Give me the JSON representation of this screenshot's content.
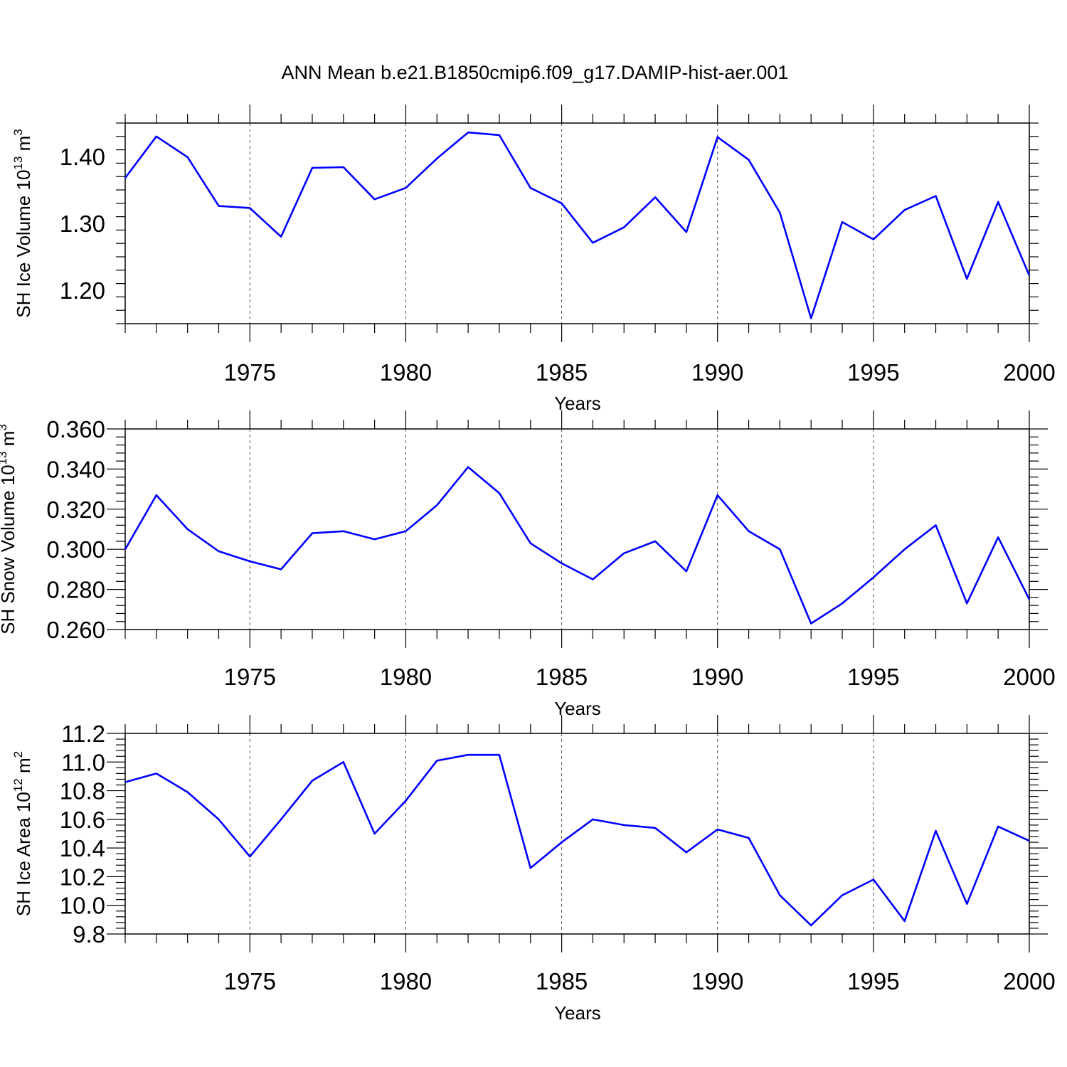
{
  "title": "ANN Mean b.e21.B1850cmip6.f09_g17.DAMIP-hist-aer.001",
  "colors": {
    "line": "#0000ff",
    "axis": "#000000"
  },
  "chart_data": [
    {
      "type": "line",
      "ylabel": "SH Ice Volume 10",
      "ylabel_exp": "13",
      "ylabel_unit": " m",
      "ylabel_unit_exp": "3",
      "xlabel": "Years",
      "xlim": [
        1971,
        2000
      ],
      "ylim": [
        1.15,
        1.45
      ],
      "xticks": [
        1975,
        1980,
        1985,
        1990,
        1995,
        2000
      ],
      "xtick_labels": [
        "1975",
        "1980",
        "1985",
        "1990",
        "1995",
        "2000"
      ],
      "yticks": [
        1.2,
        1.3,
        1.4
      ],
      "ytick_labels": [
        "1.20",
        "1.30",
        "1.40"
      ],
      "grid": "dashed vertical at major x ticks",
      "x": [
        1971,
        1972,
        1973,
        1974,
        1975,
        1976,
        1977,
        1978,
        1979,
        1980,
        1981,
        1982,
        1983,
        1984,
        1985,
        1986,
        1987,
        1988,
        1989,
        1990,
        1991,
        1992,
        1993,
        1994,
        1995,
        1996,
        1997,
        1998,
        1999,
        2000
      ],
      "values": [
        1.368,
        1.43,
        1.399,
        1.326,
        1.323,
        1.28,
        1.383,
        1.384,
        1.336,
        1.353,
        1.397,
        1.436,
        1.432,
        1.353,
        1.33,
        1.271,
        1.294,
        1.339,
        1.287,
        1.429,
        1.395,
        1.316,
        1.158,
        1.302,
        1.276,
        1.32,
        1.341,
        1.217,
        1.332,
        1.222
      ]
    },
    {
      "type": "line",
      "ylabel": "SH Snow Volume 10",
      "ylabel_exp": "13",
      "ylabel_unit": " m",
      "ylabel_unit_exp": "3",
      "xlabel": "Years",
      "xlim": [
        1971,
        2000
      ],
      "ylim": [
        0.26,
        0.36
      ],
      "xticks": [
        1975,
        1980,
        1985,
        1990,
        1995,
        2000
      ],
      "xtick_labels": [
        "1975",
        "1980",
        "1985",
        "1990",
        "1995",
        "2000"
      ],
      "yticks": [
        0.26,
        0.28,
        0.3,
        0.32,
        0.34,
        0.36
      ],
      "ytick_labels": [
        "0.260",
        "0.280",
        "0.300",
        "0.320",
        "0.340",
        "0.360"
      ],
      "grid": "dashed vertical at major x ticks",
      "x": [
        1971,
        1972,
        1973,
        1974,
        1975,
        1976,
        1977,
        1978,
        1979,
        1980,
        1981,
        1982,
        1983,
        1984,
        1985,
        1986,
        1987,
        1988,
        1989,
        1990,
        1991,
        1992,
        1993,
        1994,
        1995,
        1996,
        1997,
        1998,
        1999,
        2000
      ],
      "values": [
        0.3,
        0.327,
        0.31,
        0.299,
        0.294,
        0.29,
        0.308,
        0.309,
        0.305,
        0.309,
        0.322,
        0.341,
        0.328,
        0.303,
        0.293,
        0.285,
        0.298,
        0.304,
        0.289,
        0.327,
        0.309,
        0.3,
        0.263,
        0.273,
        0.286,
        0.3,
        0.312,
        0.273,
        0.306,
        0.275
      ]
    },
    {
      "type": "line",
      "ylabel": "SH Ice Area 10",
      "ylabel_exp": "12",
      "ylabel_unit": " m",
      "ylabel_unit_exp": "2",
      "xlabel": "Years",
      "xlim": [
        1971,
        2000
      ],
      "ylim": [
        9.8,
        11.2
      ],
      "xticks": [
        1975,
        1980,
        1985,
        1990,
        1995,
        2000
      ],
      "xtick_labels": [
        "1975",
        "1980",
        "1985",
        "1990",
        "1995",
        "2000"
      ],
      "yticks": [
        9.8,
        10.0,
        10.2,
        10.4,
        10.6,
        10.8,
        11.0,
        11.2
      ],
      "ytick_labels": [
        "9.8",
        "10.0",
        "10.2",
        "10.4",
        "10.6",
        "10.8",
        "11.0",
        "11.2"
      ],
      "grid": "dashed vertical at major x ticks",
      "x": [
        1971,
        1972,
        1973,
        1974,
        1975,
        1976,
        1977,
        1978,
        1979,
        1980,
        1981,
        1982,
        1983,
        1984,
        1985,
        1986,
        1987,
        1988,
        1989,
        1990,
        1991,
        1992,
        1993,
        1994,
        1995,
        1996,
        1997,
        1998,
        1999,
        2000
      ],
      "values": [
        10.86,
        10.92,
        10.79,
        10.6,
        10.34,
        10.6,
        10.87,
        11.0,
        10.5,
        10.73,
        11.01,
        11.05,
        11.05,
        10.26,
        10.44,
        10.6,
        10.56,
        10.54,
        10.37,
        10.53,
        10.47,
        10.07,
        9.86,
        10.07,
        10.18,
        9.89,
        10.52,
        10.01,
        10.55,
        10.45
      ]
    }
  ]
}
